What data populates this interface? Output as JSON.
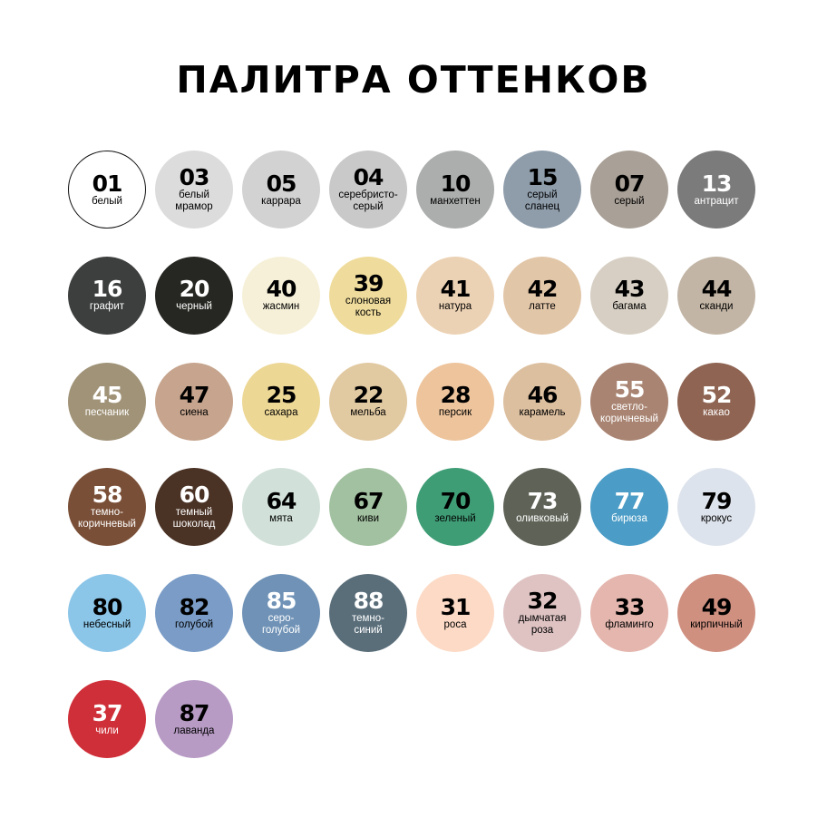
{
  "title": "ПАЛИТРА ОТТЕНКОВ",
  "swatches": [
    {
      "code": "01",
      "name": [
        "белый"
      ],
      "color": "#ffffff",
      "text": "#000000",
      "border": "#111111"
    },
    {
      "code": "03",
      "name": [
        "белый",
        "мрамор"
      ],
      "color": "#dcdcdc",
      "text": "#000000"
    },
    {
      "code": "05",
      "name": [
        "каррара"
      ],
      "color": "#d2d2d2",
      "text": "#000000"
    },
    {
      "code": "04",
      "name": [
        "серебристо-",
        "серый"
      ],
      "color": "#c9c9c9",
      "text": "#000000"
    },
    {
      "code": "10",
      "name": [
        "манхеттен"
      ],
      "color": "#acadad",
      "text": "#000000"
    },
    {
      "code": "15",
      "name": [
        "серый",
        "сланец"
      ],
      "color": "#8f9dab",
      "text": "#000000"
    },
    {
      "code": "07",
      "name": [
        "серый"
      ],
      "color": "#a9a097",
      "text": "#000000"
    },
    {
      "code": "13",
      "name": [
        "антрацит"
      ],
      "color": "#7b7b7b",
      "text": "#ffffff"
    },
    {
      "code": "16",
      "name": [
        "графит"
      ],
      "color": "#3d3e3e",
      "text": "#ffffff"
    },
    {
      "code": "20",
      "name": [
        "черный"
      ],
      "color": "#262622",
      "text": "#ffffff"
    },
    {
      "code": "40",
      "name": [
        "жасмин"
      ],
      "color": "#f6f0d8",
      "text": "#000000"
    },
    {
      "code": "39",
      "name": [
        "слоновая",
        "кость"
      ],
      "color": "#efdc9c",
      "text": "#000000"
    },
    {
      "code": "41",
      "name": [
        "натура"
      ],
      "color": "#ecd2b4",
      "text": "#000000"
    },
    {
      "code": "42",
      "name": [
        "латте"
      ],
      "color": "#e2c6a8",
      "text": "#000000"
    },
    {
      "code": "43",
      "name": [
        "багама"
      ],
      "color": "#d7cfc3",
      "text": "#000000"
    },
    {
      "code": "44",
      "name": [
        "сканди"
      ],
      "color": "#c2b5a5",
      "text": "#000000"
    },
    {
      "code": "45",
      "name": [
        "песчаник"
      ],
      "color": "#a09378",
      "text": "#ffffff"
    },
    {
      "code": "47",
      "name": [
        "сиена"
      ],
      "color": "#c6a48d",
      "text": "#000000"
    },
    {
      "code": "25",
      "name": [
        "сахара"
      ],
      "color": "#ecd795",
      "text": "#000000"
    },
    {
      "code": "22",
      "name": [
        "мельба"
      ],
      "color": "#e1c9a1",
      "text": "#000000"
    },
    {
      "code": "28",
      "name": [
        "персик"
      ],
      "color": "#edc49c",
      "text": "#000000"
    },
    {
      "code": "46",
      "name": [
        "карамель"
      ],
      "color": "#dcbf9f",
      "text": "#000000"
    },
    {
      "code": "55",
      "name": [
        "светло-",
        "коричневый"
      ],
      "color": "#a98472",
      "text": "#ffffff"
    },
    {
      "code": "52",
      "name": [
        "какао"
      ],
      "color": "#8f6452",
      "text": "#ffffff"
    },
    {
      "code": "58",
      "name": [
        "темно-",
        "коричневый"
      ],
      "color": "#7a4f37",
      "text": "#ffffff"
    },
    {
      "code": "60",
      "name": [
        "темный",
        "шоколад"
      ],
      "color": "#4a3225",
      "text": "#ffffff"
    },
    {
      "code": "64",
      "name": [
        "мята"
      ],
      "color": "#d1e1d9",
      "text": "#000000"
    },
    {
      "code": "67",
      "name": [
        "киви"
      ],
      "color": "#a2c1a0",
      "text": "#000000"
    },
    {
      "code": "70",
      "name": [
        "зеленый"
      ],
      "color": "#3f9d76",
      "text": "#000000"
    },
    {
      "code": "73",
      "name": [
        "оливковый"
      ],
      "color": "#5f6357",
      "text": "#ffffff"
    },
    {
      "code": "77",
      "name": [
        "бирюза"
      ],
      "color": "#4b9cc6",
      "text": "#ffffff"
    },
    {
      "code": "79",
      "name": [
        "крокус"
      ],
      "color": "#dde3ec",
      "text": "#000000"
    },
    {
      "code": "80",
      "name": [
        "небесный"
      ],
      "color": "#8bc5e8",
      "text": "#000000"
    },
    {
      "code": "82",
      "name": [
        "голубой"
      ],
      "color": "#7a9cc6",
      "text": "#000000"
    },
    {
      "code": "85",
      "name": [
        "серо-",
        "голубой"
      ],
      "color": "#6f92b6",
      "text": "#ffffff"
    },
    {
      "code": "88",
      "name": [
        "темно-",
        "синий"
      ],
      "color": "#5a6e7a",
      "text": "#ffffff"
    },
    {
      "code": "31",
      "name": [
        "роса"
      ],
      "color": "#fcdac6",
      "text": "#000000"
    },
    {
      "code": "32",
      "name": [
        "дымчатая",
        "роза"
      ],
      "color": "#dfc3c3",
      "text": "#000000"
    },
    {
      "code": "33",
      "name": [
        "фламинго"
      ],
      "color": "#e4b6ae",
      "text": "#000000"
    },
    {
      "code": "49",
      "name": [
        "кирпичный"
      ],
      "color": "#cf9080",
      "text": "#000000"
    },
    {
      "code": "37",
      "name": [
        "чили"
      ],
      "color": "#cf2f38",
      "text": "#ffffff"
    },
    {
      "code": "87",
      "name": [
        "лаванда"
      ],
      "color": "#b79bc5",
      "text": "#000000"
    }
  ]
}
